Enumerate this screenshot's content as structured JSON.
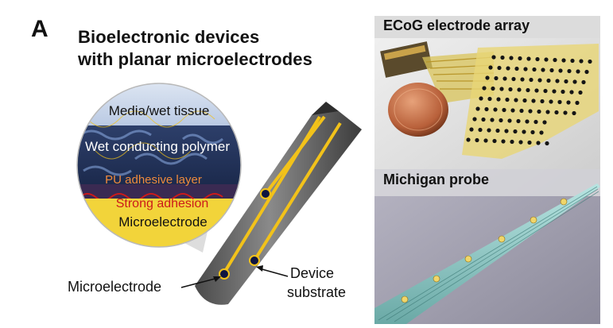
{
  "panel_letter": "A",
  "title": {
    "line1": "Bioelectronic devices",
    "line2": "with planar microelectrodes"
  },
  "inset": {
    "layers": [
      "Media/wet tissue",
      "Wet conducting polymer",
      "PU adhesive layer",
      "Strong adhesion",
      "Microelectrode"
    ]
  },
  "callouts": {
    "microelectrode": "Microelectrode",
    "device_line1": "Device",
    "device_line2": "substrate"
  },
  "photos": {
    "top": "ECoG electrode array",
    "bottom": "Michigan probe"
  },
  "colors": {
    "electrode_gold": "#f2c21a",
    "probe_gray": "#6e6e6e",
    "strong_adhesion_red": "#cc1a1a",
    "pu_layer_orange": "#f08a3c"
  }
}
